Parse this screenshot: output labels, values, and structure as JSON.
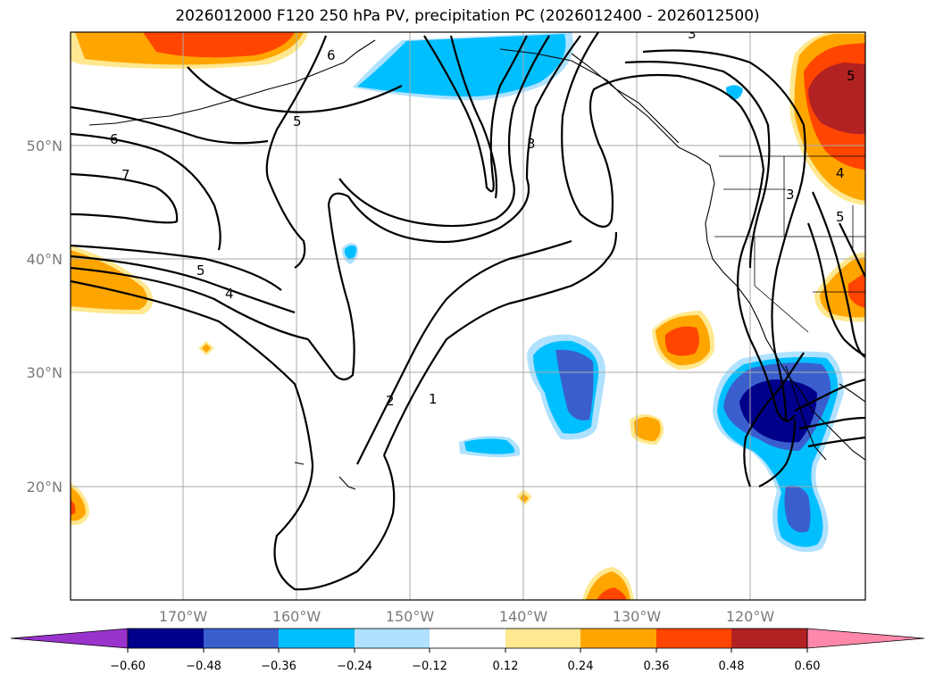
{
  "title": "2026012000 F120 250 hPa PV, precipitation PC (2026012400 - 2026012500)",
  "lat_labels": [
    "50°N",
    "40°N",
    "30°N",
    "20°N"
  ],
  "lon_labels": [
    "170°W",
    "160°W",
    "150°W",
    "140°W",
    "130°W",
    "120°W"
  ],
  "contour_labels": [
    "6",
    "5",
    "6",
    "7",
    "5",
    "4",
    "3",
    "2",
    "1",
    "3",
    "3",
    "4",
    "5",
    "5"
  ],
  "colorbar": {
    "tick_labels": [
      "−0.60",
      "−0.48",
      "−0.36",
      "−0.24",
      "−0.12",
      "0.12",
      "0.24",
      "0.36",
      "0.48",
      "0.60"
    ],
    "colors": [
      "#9933cc",
      "#00008b",
      "#3a5fcd",
      "#00bfff",
      "#b0e2ff",
      "#ffffff",
      "#ffe88f",
      "#ffa500",
      "#ff4500",
      "#b22222",
      "#ff88aa"
    ]
  },
  "colors": {
    "neg_strong": "#00008b",
    "neg_mid": "#3a5fcd",
    "neg_low": "#00bfff",
    "neg_weak": "#b0e2ff",
    "pos_weak": "#ffe88f",
    "pos_low": "#ffa500",
    "pos_mid": "#ff4500",
    "pos_strong": "#b22222"
  }
}
